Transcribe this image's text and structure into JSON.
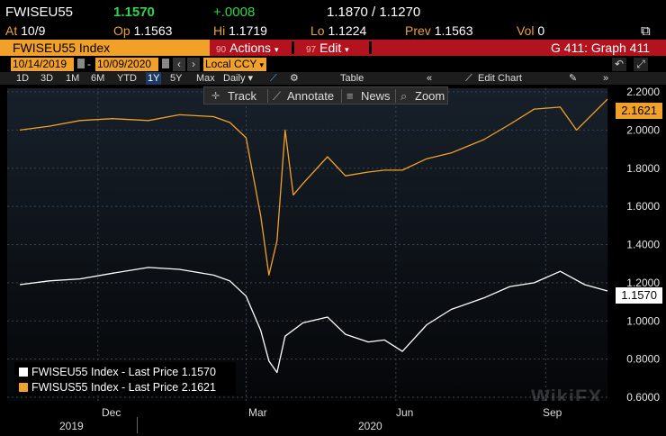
{
  "quote": {
    "ticker": "FWISEU55",
    "last": "1.1570",
    "change": "+.0008",
    "range": "1.1870 / 1.1270",
    "at_label": "At",
    "at_value": "10/9",
    "open_label": "Op",
    "open_value": "1.1563",
    "high_label": "Hi",
    "high_value": "1.1719",
    "low_label": "Lo",
    "low_value": "1.1224",
    "prev_label": "Prev",
    "prev_value": "1.1563",
    "vol_label": "Vol",
    "vol_value": "0"
  },
  "menubar": {
    "index_name": "FWISEU55 Index",
    "actions_num": "90",
    "actions_label": "Actions",
    "edit_num": "97",
    "edit_label": "Edit",
    "graph_label": "G 411: Graph 411"
  },
  "daterange": {
    "start": "10/14/2019",
    "dash": "-",
    "end": "10/09/2020",
    "currency": "Local CCY"
  },
  "periods": [
    "1D",
    "3D",
    "1M",
    "6M",
    "YTD",
    "1Y",
    "5Y",
    "Max"
  ],
  "selected_period": "1Y",
  "toolbar": {
    "frequency": "Daily",
    "table": "Table",
    "edit_chart": "Edit Chart"
  },
  "chart_tools": {
    "track": "Track",
    "annotate": "Annotate",
    "news": "News",
    "zoom": "Zoom"
  },
  "legend": [
    {
      "label": "FWISEU55 Index - Last Price 1.1570",
      "color": "#ffffff"
    },
    {
      "label": "FWISUS55 Index - Last Price 2.1621",
      "color": "#f2a128"
    }
  ],
  "price_tags": {
    "white": "1.1570",
    "orange": "2.1621"
  },
  "watermark": "WikiFX",
  "chart_data": {
    "type": "line",
    "xlabel": "",
    "ylabel": "",
    "ylim": [
      0.6,
      2.2
    ],
    "y_ticks": [
      "2.2000",
      "2.0000",
      "1.8000",
      "1.6000",
      "1.4000",
      "1.2000",
      "1.0000",
      "0.8000",
      "0.6000"
    ],
    "x_ticks": [
      "Dec",
      "Mar",
      "Jun",
      "Sep"
    ],
    "x_years": [
      "2019",
      "2020"
    ],
    "x_range": [
      "2019-10-14",
      "2020-10-09"
    ],
    "series": [
      {
        "name": "FWISEU55 Index",
        "color": "#ffffff",
        "x": [
          "2019-10-14",
          "2019-11-01",
          "2019-11-20",
          "2019-12-10",
          "2020-01-01",
          "2020-01-20",
          "2020-02-10",
          "2020-02-20",
          "2020-03-01",
          "2020-03-10",
          "2020-03-15",
          "2020-03-20",
          "2020-03-25",
          "2020-04-05",
          "2020-04-20",
          "2020-05-01",
          "2020-05-15",
          "2020-05-25",
          "2020-06-05",
          "2020-06-20",
          "2020-07-05",
          "2020-07-25",
          "2020-08-10",
          "2020-08-25",
          "2020-09-10",
          "2020-09-25",
          "2020-10-09"
        ],
        "y": [
          1.19,
          1.21,
          1.22,
          1.25,
          1.28,
          1.27,
          1.24,
          1.21,
          1.13,
          0.95,
          0.79,
          0.73,
          0.92,
          0.99,
          1.02,
          0.93,
          0.89,
          0.9,
          0.84,
          0.98,
          1.06,
          1.12,
          1.18,
          1.2,
          1.26,
          1.19,
          1.157
        ]
      },
      {
        "name": "FWISUS55 Index",
        "color": "#f2a128",
        "x": [
          "2019-10-14",
          "2019-11-01",
          "2019-11-20",
          "2019-12-10",
          "2020-01-01",
          "2020-01-20",
          "2020-02-10",
          "2020-02-20",
          "2020-03-01",
          "2020-03-10",
          "2020-03-15",
          "2020-03-20",
          "2020-03-25",
          "2020-03-30",
          "2020-04-05",
          "2020-04-20",
          "2020-05-01",
          "2020-05-15",
          "2020-05-25",
          "2020-06-05",
          "2020-06-20",
          "2020-07-05",
          "2020-07-25",
          "2020-08-10",
          "2020-08-25",
          "2020-09-10",
          "2020-09-20",
          "2020-10-09"
        ],
        "y": [
          2.0,
          2.02,
          2.05,
          2.06,
          2.05,
          2.08,
          2.07,
          2.04,
          1.96,
          1.55,
          1.24,
          1.42,
          2.0,
          1.66,
          1.72,
          1.86,
          1.76,
          1.78,
          1.79,
          1.79,
          1.85,
          1.88,
          1.95,
          2.03,
          2.11,
          2.12,
          2.0,
          2.162
        ]
      }
    ]
  }
}
